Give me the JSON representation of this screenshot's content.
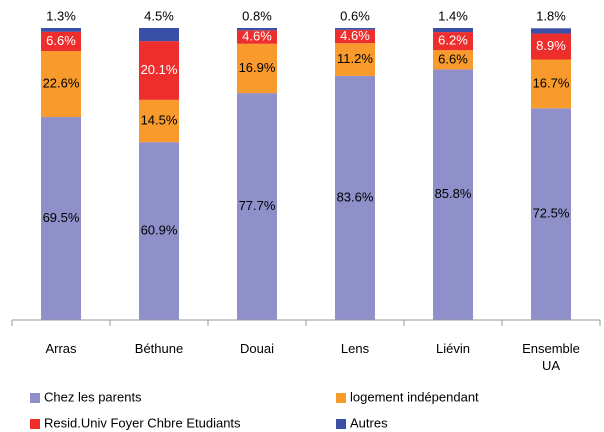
{
  "chart_data": {
    "type": "stacked_bar",
    "categories": [
      "Arras",
      "Béthune",
      "Douai",
      "Lens",
      "Liévin",
      "Ensemble UA"
    ],
    "ylim": [
      0,
      100
    ],
    "legend": "bottom",
    "series": [
      {
        "name": "Chez les parents",
        "color": "#8f8fca",
        "values": [
          69.5,
          60.9,
          77.7,
          83.6,
          85.8,
          72.5
        ],
        "value_labels": [
          "69.5%",
          "60.9%",
          "77.7%",
          "83.6%",
          "85.8%",
          "72.5%"
        ]
      },
      {
        "name": "logement indépendant",
        "color": "#f89a2c",
        "values": [
          22.6,
          14.5,
          16.9,
          11.2,
          6.6,
          16.7
        ],
        "value_labels": [
          "22.6%",
          "14.5%",
          "16.9%",
          "11.2%",
          "6.6%",
          "16.7%"
        ]
      },
      {
        "name": "Resid.Univ Foyer Chbre Etudiants",
        "color": "#ee2d2d",
        "values": [
          6.6,
          20.1,
          4.6,
          4.6,
          6.2,
          8.9
        ],
        "value_labels": [
          "6.6%",
          "20.1%",
          "4.6%",
          "4.6%",
          "6.2%",
          "8.9%"
        ]
      },
      {
        "name": "Autres",
        "color": "#3a4fa6",
        "values": [
          1.3,
          4.5,
          0.8,
          0.6,
          1.4,
          1.8
        ],
        "value_labels": [
          "1.3%",
          "4.5%",
          "0.8%",
          "0.6%",
          "1.4%",
          "1.8%"
        ]
      }
    ]
  }
}
